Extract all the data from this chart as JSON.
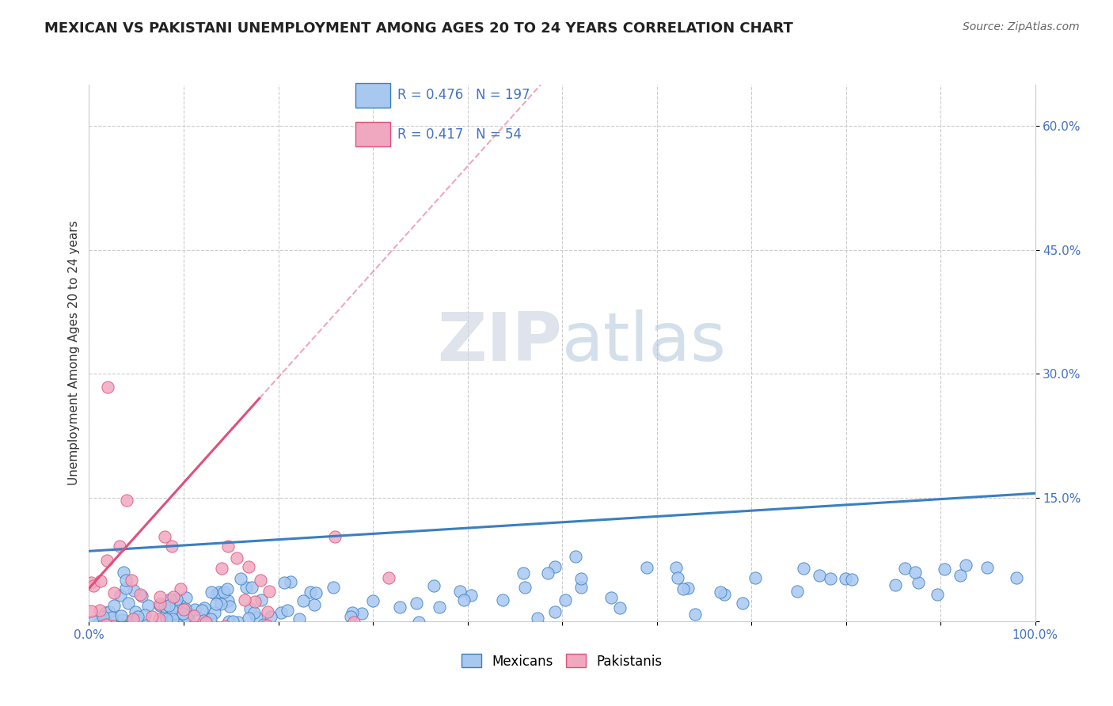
{
  "title": "MEXICAN VS PAKISTANI UNEMPLOYMENT AMONG AGES 20 TO 24 YEARS CORRELATION CHART",
  "source": "Source: ZipAtlas.com",
  "ylabel": "Unemployment Among Ages 20 to 24 years",
  "xlim": [
    0.0,
    1.0
  ],
  "ylim": [
    0.0,
    0.65
  ],
  "x_ticks": [
    0.0,
    0.1,
    0.2,
    0.3,
    0.4,
    0.5,
    0.6,
    0.7,
    0.8,
    0.9,
    1.0
  ],
  "x_tick_labels": [
    "0.0%",
    "",
    "",
    "",
    "",
    "",
    "",
    "",
    "",
    "",
    "100.0%"
  ],
  "y_ticks": [
    0.0,
    0.15,
    0.3,
    0.45,
    0.6
  ],
  "y_tick_labels": [
    "",
    "15.0%",
    "30.0%",
    "45.0%",
    "60.0%"
  ],
  "mexican_R": 0.476,
  "mexican_N": 197,
  "pakistani_R": 0.417,
  "pakistani_N": 54,
  "mexican_color": "#a8c8f0",
  "pakistani_color": "#f0a8c0",
  "mexican_line_color": "#3a7fc1",
  "pakistani_line_color": "#e0507a",
  "legend_text_color": "#4472c4",
  "background_color": "#ffffff",
  "grid_color": "#cccccc",
  "title_fontsize": 13,
  "axis_label_fontsize": 11,
  "tick_fontsize": 11,
  "legend_fontsize": 12,
  "source_fontsize": 10
}
